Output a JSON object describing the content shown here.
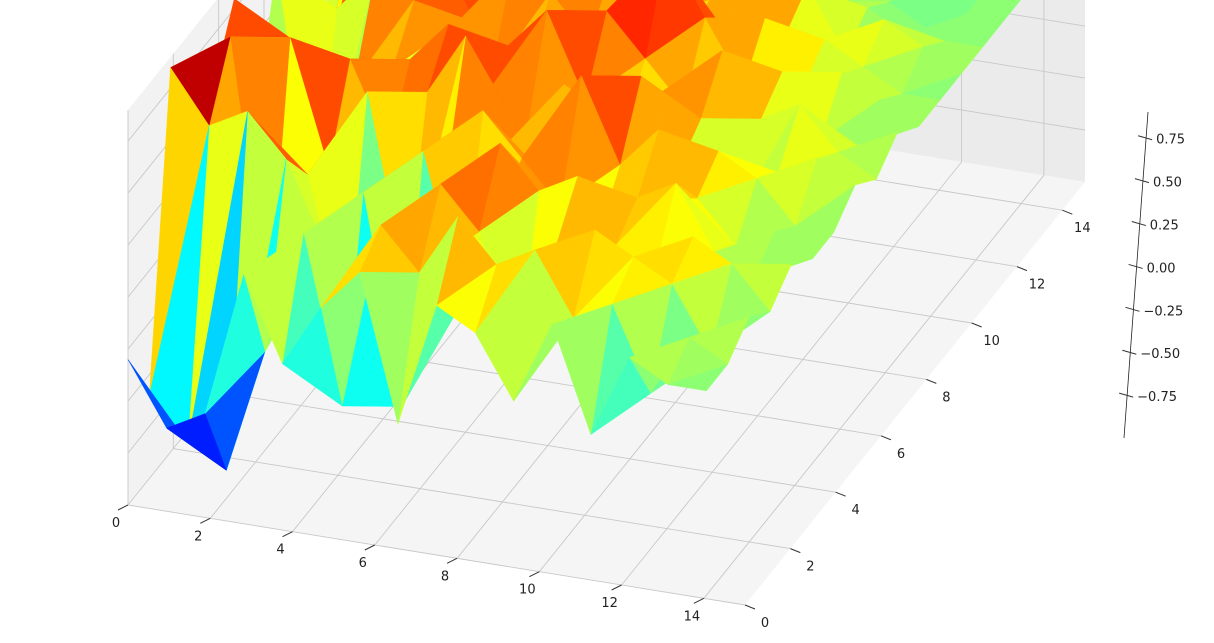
{
  "chart_data": {
    "type": "surface3d",
    "colormap": "jet",
    "grid": true,
    "xlim": [
      0,
      15
    ],
    "ylim": [
      0,
      15
    ],
    "zlim": [
      -1,
      0.9
    ],
    "x_ticks": [
      0,
      2,
      4,
      6,
      8,
      10,
      12,
      14
    ],
    "y_ticks": [
      0,
      2,
      4,
      6,
      8,
      10,
      12,
      14
    ],
    "z_ticks": [
      0.75,
      0.5,
      0.25,
      0.0,
      -0.25,
      -0.5,
      -0.75
    ],
    "x_tick_labels": [
      "0",
      "2",
      "4",
      "6",
      "8",
      "10",
      "12",
      "14"
    ],
    "y_tick_labels": [
      "0",
      "2",
      "4",
      "6",
      "8",
      "10",
      "12",
      "14"
    ],
    "z_tick_labels": [
      "0.75",
      "0.50",
      "0.25",
      "0.00",
      "−0.25",
      "−0.50",
      "−0.75"
    ],
    "note_on_values": "random-like noisy surface over a 16x16 grid, values roughly within -0.95 to 0.9",
    "z_values": [
      [
        -0.3,
        -0.6,
        0.85,
        -0.9,
        0.5,
        0.8,
        0.1,
        0.7,
        -0.4,
        0.2,
        0.3,
        0.5,
        0.4,
        0.2,
        0.1,
        0.2
      ],
      [
        -0.6,
        -0.8,
        0.6,
        0.9,
        -0.7,
        0.3,
        0.5,
        -0.6,
        0.4,
        0.6,
        -0.2,
        0.3,
        0.0,
        0.3,
        0.4,
        0.1
      ],
      [
        -0.5,
        -0.9,
        0.7,
        -0.4,
        0.8,
        0.4,
        -0.3,
        0.2,
        0.6,
        0.5,
        0.4,
        0.2,
        0.5,
        0.1,
        0.0,
        -0.1
      ],
      [
        0.2,
        -0.3,
        0.5,
        0.3,
        0.2,
        0.6,
        0.4,
        0.3,
        0.5,
        0.7,
        0.4,
        0.3,
        0.2,
        0.4,
        0.3,
        0.2
      ],
      [
        -0.2,
        0.3,
        0.1,
        -0.4,
        0.6,
        0.2,
        0.5,
        -0.2,
        0.4,
        0.3,
        0.6,
        0.5,
        0.3,
        0.2,
        0.1,
        0.0
      ],
      [
        0.1,
        -0.5,
        0.4,
        0.2,
        -0.3,
        0.5,
        0.7,
        0.3,
        0.2,
        0.6,
        0.4,
        0.2,
        0.1,
        0.3,
        0.2,
        0.1
      ],
      [
        0.3,
        0.4,
        -0.6,
        0.5,
        0.2,
        0.8,
        0.4,
        0.5,
        0.3,
        0.5,
        0.3,
        0.4,
        0.2,
        0.1,
        0.0,
        -0.1
      ],
      [
        -0.4,
        0.2,
        0.5,
        -0.2,
        0.6,
        0.3,
        0.2,
        0.7,
        0.4,
        0.3,
        0.5,
        0.2,
        0.3,
        0.2,
        0.1,
        0.1
      ],
      [
        0.2,
        0.5,
        0.3,
        0.6,
        0.4,
        0.2,
        0.5,
        0.3,
        0.6,
        0.2,
        0.3,
        0.5,
        0.1,
        0.2,
        0.3,
        0.0
      ],
      [
        0.1,
        0.3,
        -0.3,
        0.4,
        0.2,
        0.7,
        0.3,
        0.2,
        0.4,
        0.8,
        0.2,
        0.3,
        0.2,
        0.1,
        0.0,
        0.1
      ],
      [
        -0.2,
        0.4,
        0.3,
        0.5,
        0.1,
        0.3,
        0.6,
        0.4,
        0.2,
        0.5,
        0.3,
        0.6,
        0.1,
        0.2,
        0.1,
        0.0
      ],
      [
        0.2,
        0.1,
        0.4,
        0.2,
        0.3,
        0.5,
        0.2,
        0.3,
        0.5,
        0.2,
        0.4,
        0.2,
        0.3,
        0.1,
        0.0,
        -0.1
      ],
      [
        -0.3,
        0.2,
        0.3,
        0.1,
        0.4,
        0.2,
        0.3,
        -0.1,
        0.2,
        0.3,
        0.1,
        0.2,
        0.0,
        0.1,
        0.0,
        0.1
      ],
      [
        0.1,
        -0.2,
        0.2,
        0.3,
        0.1,
        0.0,
        0.2,
        0.1,
        0.3,
        0.0,
        0.2,
        0.1,
        0.2,
        0.0,
        -0.1,
        0.0
      ],
      [
        0.0,
        0.1,
        -0.1,
        0.2,
        0.0,
        0.1,
        0.0,
        0.2,
        0.1,
        0.0,
        0.1,
        0.0,
        0.1,
        0.0,
        0.0,
        0.0
      ],
      [
        0.0,
        0.0,
        0.1,
        0.0,
        0.1,
        0.0,
        0.0,
        0.1,
        0.0,
        0.1,
        0.0,
        0.0,
        0.0,
        0.0,
        0.0,
        0.0
      ]
    ]
  }
}
